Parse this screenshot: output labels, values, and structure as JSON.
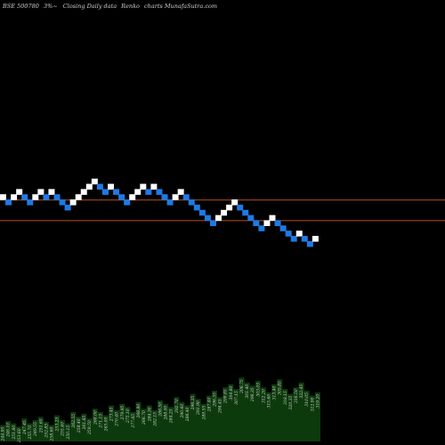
{
  "header": {
    "symbol": "BSE 500780",
    "box_size": "3%~",
    "description": "Closing Daily data",
    "chart_kind": "Renko",
    "branding": "charts MunafaSutra.com"
  },
  "colors": {
    "background": "#000000",
    "up_brick": "#ffffff",
    "down_brick": "#1e7ae6",
    "reference_line": "#b4501e",
    "volume_fill": "#0d3a0d",
    "volume_label": "#d0d0d0"
  },
  "chart_data": [
    {
      "type": "renko",
      "title": "BSE 500780 3%~ Closing Daily data Renko charts MunafaSutra.com",
      "box_size_percent": 3,
      "y_scale": "log",
      "reference_lines": [
        1.0,
        0.89
      ],
      "bricks": [
        {
          "dir": "up",
          "level": 0
        },
        {
          "dir": "down",
          "level": -1
        },
        {
          "dir": "up",
          "level": 0
        },
        {
          "dir": "up",
          "level": 1
        },
        {
          "dir": "down",
          "level": 0
        },
        {
          "dir": "down",
          "level": -1
        },
        {
          "dir": "up",
          "level": 0
        },
        {
          "dir": "up",
          "level": 1
        },
        {
          "dir": "down",
          "level": 0
        },
        {
          "dir": "up",
          "level": 1
        },
        {
          "dir": "down",
          "level": 0
        },
        {
          "dir": "down",
          "level": -1
        },
        {
          "dir": "down",
          "level": -2
        },
        {
          "dir": "up",
          "level": -1
        },
        {
          "dir": "up",
          "level": 0
        },
        {
          "dir": "up",
          "level": 1
        },
        {
          "dir": "up",
          "level": 2
        },
        {
          "dir": "up",
          "level": 3
        },
        {
          "dir": "down",
          "level": 2
        },
        {
          "dir": "down",
          "level": 1
        },
        {
          "dir": "up",
          "level": 2
        },
        {
          "dir": "down",
          "level": 1
        },
        {
          "dir": "down",
          "level": 0
        },
        {
          "dir": "down",
          "level": -1
        },
        {
          "dir": "up",
          "level": 0
        },
        {
          "dir": "up",
          "level": 1
        },
        {
          "dir": "up",
          "level": 2
        },
        {
          "dir": "down",
          "level": 1
        },
        {
          "dir": "up",
          "level": 2
        },
        {
          "dir": "down",
          "level": 1
        },
        {
          "dir": "down",
          "level": 0
        },
        {
          "dir": "down",
          "level": -1
        },
        {
          "dir": "up",
          "level": 0
        },
        {
          "dir": "up",
          "level": 1
        },
        {
          "dir": "down",
          "level": 0
        },
        {
          "dir": "down",
          "level": -1
        },
        {
          "dir": "down",
          "level": -2
        },
        {
          "dir": "down",
          "level": -3
        },
        {
          "dir": "down",
          "level": -4
        },
        {
          "dir": "down",
          "level": -5
        },
        {
          "dir": "up",
          "level": -4
        },
        {
          "dir": "up",
          "level": -3
        },
        {
          "dir": "up",
          "level": -2
        },
        {
          "dir": "up",
          "level": -1
        },
        {
          "dir": "down",
          "level": -2
        },
        {
          "dir": "down",
          "level": -3
        },
        {
          "dir": "down",
          "level": -4
        },
        {
          "dir": "down",
          "level": -5
        },
        {
          "dir": "down",
          "level": -6
        },
        {
          "dir": "up",
          "level": -5
        },
        {
          "dir": "up",
          "level": -4
        },
        {
          "dir": "down",
          "level": -5
        },
        {
          "dir": "down",
          "level": -6
        },
        {
          "dir": "down",
          "level": -7
        },
        {
          "dir": "down",
          "level": -8
        },
        {
          "dir": "up",
          "level": -7
        },
        {
          "dir": "down",
          "level": -8
        },
        {
          "dir": "down",
          "level": -9
        },
        {
          "dir": "up",
          "level": -8
        }
      ],
      "volume_labels": [
        "244.95",
        "246.10",
        "251.80",
        "253.60",
        "247.45",
        "255.70",
        "249.55",
        "251.65",
        "252.85",
        "258.60",
        "253.25",
        "255.40",
        "250.15",
        "262.55",
        "258.40",
        "261.85",
        "259.50",
        "268.00",
        "271.15",
        "265.00",
        "273.45",
        "270.40",
        "279.95",
        "275.10",
        "277.65",
        "268.80",
        "266.70",
        "284.30",
        "282.15",
        "286.50",
        "288.00",
        "284.25",
        "292.70",
        "290.60",
        "286.40",
        "296.35",
        "291.90",
        "289.55",
        "287.40",
        "296.55",
        "294.45",
        "299.85",
        "304.80",
        "307.15",
        "306.75",
        "301.40",
        "298.35",
        "303.05",
        "312.20",
        "315.60",
        "313.40",
        "305.85",
        "318.15",
        "320.35",
        "316.50",
        "322.45",
        "310.05",
        "312.90",
        "319.20"
      ],
      "volume": [
        0.2,
        0.25,
        0.22,
        0.18,
        0.28,
        0.22,
        0.26,
        0.3,
        0.24,
        0.2,
        0.32,
        0.26,
        0.22,
        0.36,
        0.3,
        0.34,
        0.28,
        0.4,
        0.36,
        0.32,
        0.44,
        0.38,
        0.46,
        0.42,
        0.36,
        0.48,
        0.4,
        0.44,
        0.38,
        0.5,
        0.46,
        0.42,
        0.54,
        0.48,
        0.44,
        0.58,
        0.52,
        0.46,
        0.56,
        0.62,
        0.54,
        0.66,
        0.7,
        0.64,
        0.78,
        0.72,
        0.68,
        0.74,
        0.66,
        0.6,
        0.7,
        0.76,
        0.64,
        0.58,
        0.66,
        0.72,
        0.62,
        0.56,
        0.6
      ]
    }
  ]
}
